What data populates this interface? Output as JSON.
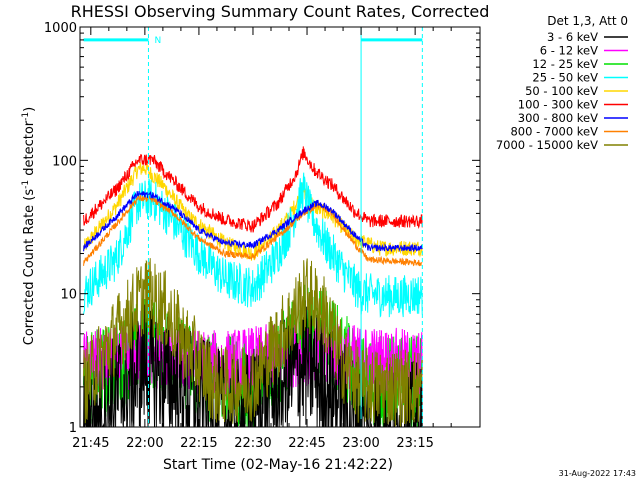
{
  "chart_data": {
    "type": "line",
    "title": "RHESSI Observing Summary Count Rates, Corrected",
    "xlabel": "Start Time (02-May-16 21:42:22)",
    "ylabel_main": "Corrected Count Rate (s",
    "ylabel_sup1": "-1",
    "ylabel_mid": " detector",
    "ylabel_sup2": "-1",
    "ylabel_end": ")",
    "y_scale": "log",
    "ylim": [
      1,
      1000
    ],
    "xlim_minutes": [
      -18,
      93
    ],
    "x_ticks": [
      {
        "t": -15,
        "label": "21:45"
      },
      {
        "t": 0,
        "label": "22:00"
      },
      {
        "t": 15,
        "label": "22:15"
      },
      {
        "t": 30,
        "label": "22:30"
      },
      {
        "t": 45,
        "label": "22:45"
      },
      {
        "t": 60,
        "label": "23:00"
      },
      {
        "t": 75,
        "label": "23:15"
      }
    ],
    "y_ticks": [
      {
        "v": 1,
        "label": "1"
      },
      {
        "v": 10,
        "label": "10"
      },
      {
        "v": 100,
        "label": "100"
      },
      {
        "v": 1000,
        "label": "1000"
      }
    ],
    "legend_header": "Det 1,3, Att 0",
    "legend_position": "right",
    "series": [
      {
        "name": "3 - 6 keV",
        "color": "#000000",
        "key": [
          [
            -17,
            1
          ],
          [
            -5,
            2
          ],
          [
            0,
            3
          ],
          [
            10,
            2
          ],
          [
            25,
            1
          ],
          [
            45,
            3
          ],
          [
            60,
            1
          ],
          [
            77,
            1
          ]
        ]
      },
      {
        "name": "6 - 12 keV",
        "color": "#ff00ff",
        "key": [
          [
            -17,
            3
          ],
          [
            0,
            3.4
          ],
          [
            20,
            3
          ],
          [
            45,
            3.6
          ],
          [
            77,
            3
          ]
        ]
      },
      {
        "name": "12 - 25 keV",
        "color": "#00e000",
        "key": [
          [
            -17,
            2.2
          ],
          [
            -8,
            2.8
          ],
          [
            0,
            4.5
          ],
          [
            5,
            4
          ],
          [
            15,
            2.5
          ],
          [
            30,
            2
          ],
          [
            40,
            3.8
          ],
          [
            45,
            5.5
          ],
          [
            50,
            5
          ],
          [
            60,
            2.2
          ],
          [
            77,
            2.2
          ]
        ]
      },
      {
        "name": "25 - 50 keV",
        "color": "#00ffff",
        "key": [
          [
            -17,
            10
          ],
          [
            -8,
            18
          ],
          [
            -2,
            48
          ],
          [
            2,
            52
          ],
          [
            8,
            35
          ],
          [
            15,
            20
          ],
          [
            22,
            13
          ],
          [
            30,
            11
          ],
          [
            36,
            18
          ],
          [
            40,
            30
          ],
          [
            44,
            60
          ],
          [
            46,
            40
          ],
          [
            50,
            24
          ],
          [
            55,
            15
          ],
          [
            60,
            10
          ],
          [
            70,
            9.5
          ],
          [
            77,
            10
          ]
        ]
      },
      {
        "name": "50 - 100 keV",
        "color": "#ffd700",
        "key": [
          [
            -17,
            22
          ],
          [
            -8,
            45
          ],
          [
            -2,
            85
          ],
          [
            0,
            88
          ],
          [
            5,
            65
          ],
          [
            12,
            38
          ],
          [
            22,
            24
          ],
          [
            30,
            20
          ],
          [
            35,
            26
          ],
          [
            40,
            38
          ],
          [
            44,
            60
          ],
          [
            47,
            45
          ],
          [
            52,
            38
          ],
          [
            58,
            26
          ],
          [
            65,
            22
          ],
          [
            77,
            22
          ]
        ]
      },
      {
        "name": "100 - 300 keV",
        "color": "#ff0000",
        "key": [
          [
            -17,
            35
          ],
          [
            -8,
            60
          ],
          [
            -2,
            100
          ],
          [
            2,
            102
          ],
          [
            8,
            70
          ],
          [
            15,
            45
          ],
          [
            22,
            36
          ],
          [
            30,
            32
          ],
          [
            37,
            48
          ],
          [
            42,
            80
          ],
          [
            44,
            115
          ],
          [
            47,
            85
          ],
          [
            52,
            65
          ],
          [
            58,
            42
          ],
          [
            62,
            35
          ],
          [
            77,
            35
          ]
        ]
      },
      {
        "name": "300 - 800 keV",
        "color": "#0000ff",
        "key": [
          [
            -17,
            22
          ],
          [
            -8,
            38
          ],
          [
            -2,
            56
          ],
          [
            2,
            55
          ],
          [
            8,
            44
          ],
          [
            15,
            30
          ],
          [
            22,
            24
          ],
          [
            30,
            23
          ],
          [
            37,
            30
          ],
          [
            44,
            42
          ],
          [
            48,
            48
          ],
          [
            52,
            42
          ],
          [
            58,
            28
          ],
          [
            62,
            22
          ],
          [
            77,
            22
          ]
        ]
      },
      {
        "name": "800 - 7000 keV",
        "color": "#ff8000",
        "key": [
          [
            -17,
            17
          ],
          [
            -8,
            33
          ],
          [
            -2,
            52
          ],
          [
            2,
            51
          ],
          [
            8,
            40
          ],
          [
            15,
            26
          ],
          [
            22,
            20
          ],
          [
            30,
            19
          ],
          [
            37,
            27
          ],
          [
            44,
            40
          ],
          [
            48,
            46
          ],
          [
            52,
            40
          ],
          [
            58,
            24
          ],
          [
            62,
            18
          ],
          [
            77,
            17
          ]
        ]
      },
      {
        "name": "7000 - 15000 keV",
        "color": "#808000",
        "key": [
          [
            -17,
            2
          ],
          [
            -8,
            5
          ],
          [
            0,
            10
          ],
          [
            5,
            8
          ],
          [
            12,
            4
          ],
          [
            20,
            2
          ],
          [
            30,
            2.2
          ],
          [
            38,
            5
          ],
          [
            45,
            10
          ],
          [
            50,
            7
          ],
          [
            55,
            3
          ],
          [
            60,
            2
          ],
          [
            77,
            2
          ]
        ]
      }
    ],
    "flags": {
      "color": "#00ffff",
      "level": 800,
      "segments": [
        [
          -17,
          1
        ],
        [
          60,
          77
        ]
      ],
      "night_marker_t": 1,
      "night_marker_label": "N",
      "dashed_lines_t": [
        1,
        77
      ],
      "solid_line_t": 60
    },
    "footer_date": "31-Aug-2022 17:43"
  }
}
